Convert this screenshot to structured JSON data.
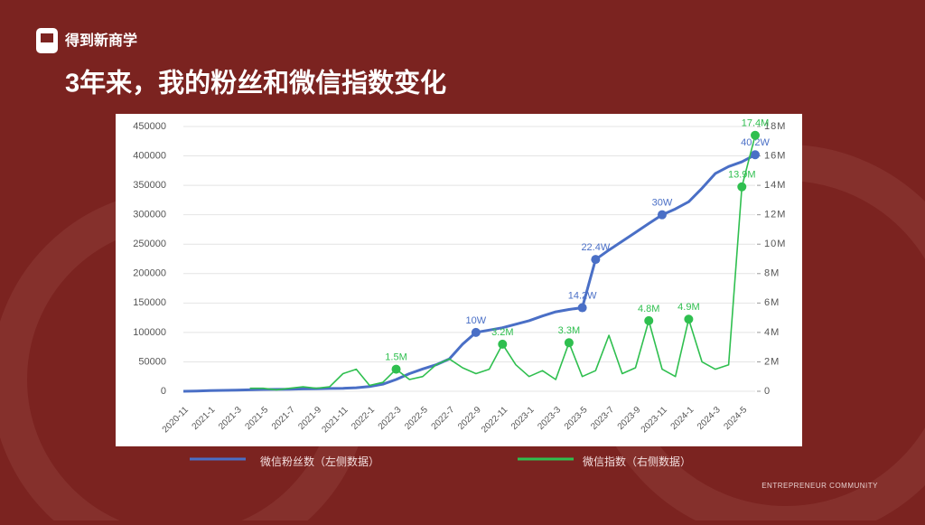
{
  "brand": "得到新商学",
  "footer": "ENTREPRENEUR COMMUNITY",
  "chart_data": {
    "type": "line",
    "title": "3年来，我的粉丝和微信指数变化",
    "categories": [
      "2020-11",
      null,
      "2021-1",
      null,
      "2021-3",
      null,
      "2021-5",
      null,
      "2021-7",
      null,
      "2021-9",
      null,
      "2021-11",
      null,
      "2022-1",
      null,
      "2022-3",
      null,
      "2022-5",
      null,
      "2022-7",
      null,
      "2022-9",
      null,
      "2022-11",
      null,
      "2023-1",
      null,
      "2023-3",
      null,
      "2023-5",
      null,
      "2023-7",
      null,
      "2023-9",
      null,
      "2023-11",
      null,
      "2024-1",
      null,
      "2024-3",
      null,
      "2024-5",
      null
    ],
    "series": [
      {
        "name": "微信粉丝数（左侧数据）",
        "color": "#4a6fc6",
        "values": [
          0,
          500,
          1000,
          1500,
          2000,
          2500,
          3000,
          3300,
          3600,
          4000,
          4300,
          4700,
          5000,
          6000,
          8000,
          12000,
          20000,
          30000,
          38000,
          45000,
          55000,
          80000,
          100000,
          104000,
          108000,
          114000,
          120000,
          128000,
          135000,
          139000,
          142000,
          224000,
          240000,
          255000,
          270000,
          285000,
          300000,
          310000,
          322000,
          345000,
          370000,
          382000,
          390000,
          402000
        ],
        "value_labels": [
          null,
          null,
          null,
          null,
          null,
          null,
          null,
          null,
          null,
          null,
          null,
          null,
          null,
          null,
          null,
          null,
          null,
          null,
          null,
          null,
          null,
          null,
          "10W",
          null,
          null,
          null,
          null,
          null,
          null,
          null,
          "14.2W",
          "22.4W",
          null,
          null,
          null,
          null,
          "30W",
          null,
          null,
          null,
          null,
          null,
          null,
          "40.2W"
        ]
      },
      {
        "name": "微信指数（右侧数据）",
        "color": "#2fbf4f",
        "axis": "y2",
        "values": [
          null,
          null,
          null,
          null,
          null,
          200000,
          200000,
          100000,
          200000,
          300000,
          200000,
          300000,
          1200000,
          1500000,
          400000,
          600000,
          1500000,
          800000,
          1000000,
          1800000,
          2200000,
          1600000,
          1200000,
          1500000,
          3200000,
          1800000,
          1000000,
          1400000,
          800000,
          3300000,
          1000000,
          1400000,
          3800000,
          1200000,
          1600000,
          4800000,
          1500000,
          1000000,
          4900000,
          2000000,
          1500000,
          1800000,
          13900000,
          17400000
        ],
        "value_labels": [
          null,
          null,
          null,
          null,
          null,
          null,
          null,
          null,
          null,
          null,
          null,
          null,
          null,
          null,
          null,
          null,
          "1.5M",
          null,
          null,
          null,
          null,
          null,
          null,
          null,
          "3.2M",
          null,
          null,
          null,
          null,
          "3.3M",
          null,
          null,
          null,
          null,
          null,
          "4.8M",
          null,
          null,
          "4.9M",
          null,
          null,
          null,
          "13.9M",
          "17.4M"
        ]
      }
    ],
    "ylim": [
      0,
      450000
    ],
    "yticks": [
      0,
      50000,
      100000,
      150000,
      200000,
      250000,
      300000,
      350000,
      400000,
      450000
    ],
    "y2lim": [
      0,
      18000000
    ],
    "y2ticks": [
      0,
      {
        "value": 2000000,
        "label": "2M"
      },
      {
        "value": 4000000,
        "label": "4M"
      },
      {
        "value": 6000000,
        "label": "6M"
      },
      {
        "value": 8000000,
        "label": "8M"
      },
      {
        "value": 10000000,
        "label": "10M"
      },
      {
        "value": 12000000,
        "label": "12M"
      },
      {
        "value": 14000000,
        "label": "14M"
      },
      {
        "value": 16000000,
        "label": "16M"
      },
      {
        "value": 18000000,
        "label": "18M"
      }
    ],
    "grid": true
  }
}
